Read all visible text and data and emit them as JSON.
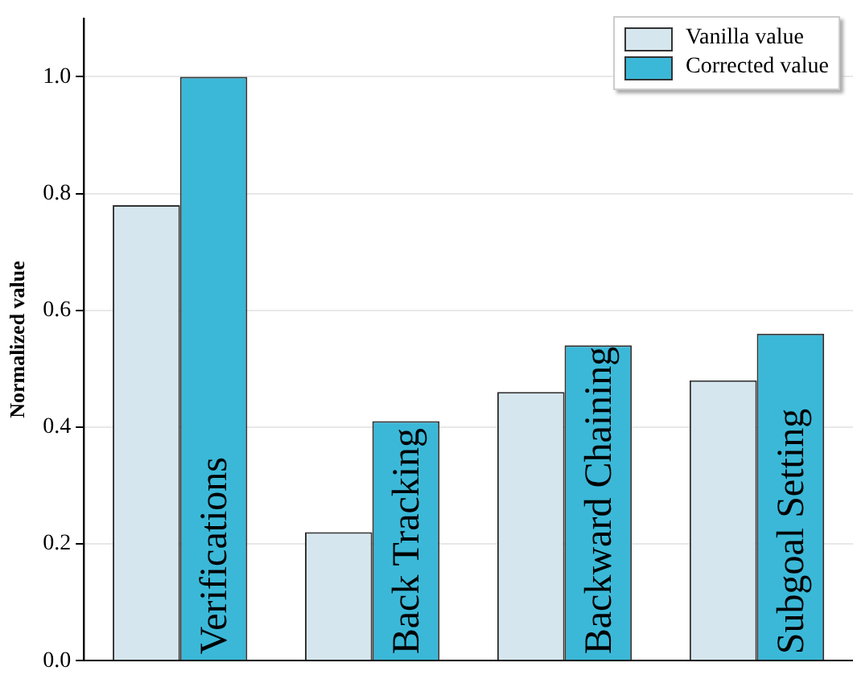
{
  "chart_data": {
    "type": "bar",
    "ylabel": "Normalized value",
    "categories": [
      "Verifications",
      "Back Tracking",
      "Backward Chaining",
      "Subgoal Setting"
    ],
    "series": [
      {
        "name": "Vanilla value",
        "color": "#d6e6ee",
        "values": [
          0.78,
          0.22,
          0.46,
          0.48
        ]
      },
      {
        "name": "Corrected value",
        "color": "#3bb8d8",
        "values": [
          1.0,
          0.41,
          0.54,
          0.56
        ]
      }
    ],
    "ylim": [
      0,
      1.1
    ],
    "yticks": [
      {
        "value": 0,
        "label": "0.0"
      },
      0.2,
      0.4,
      0.6,
      0.8,
      {
        "value": 1,
        "label": "1.0"
      }
    ],
    "grid": "y",
    "legend": "top right"
  }
}
